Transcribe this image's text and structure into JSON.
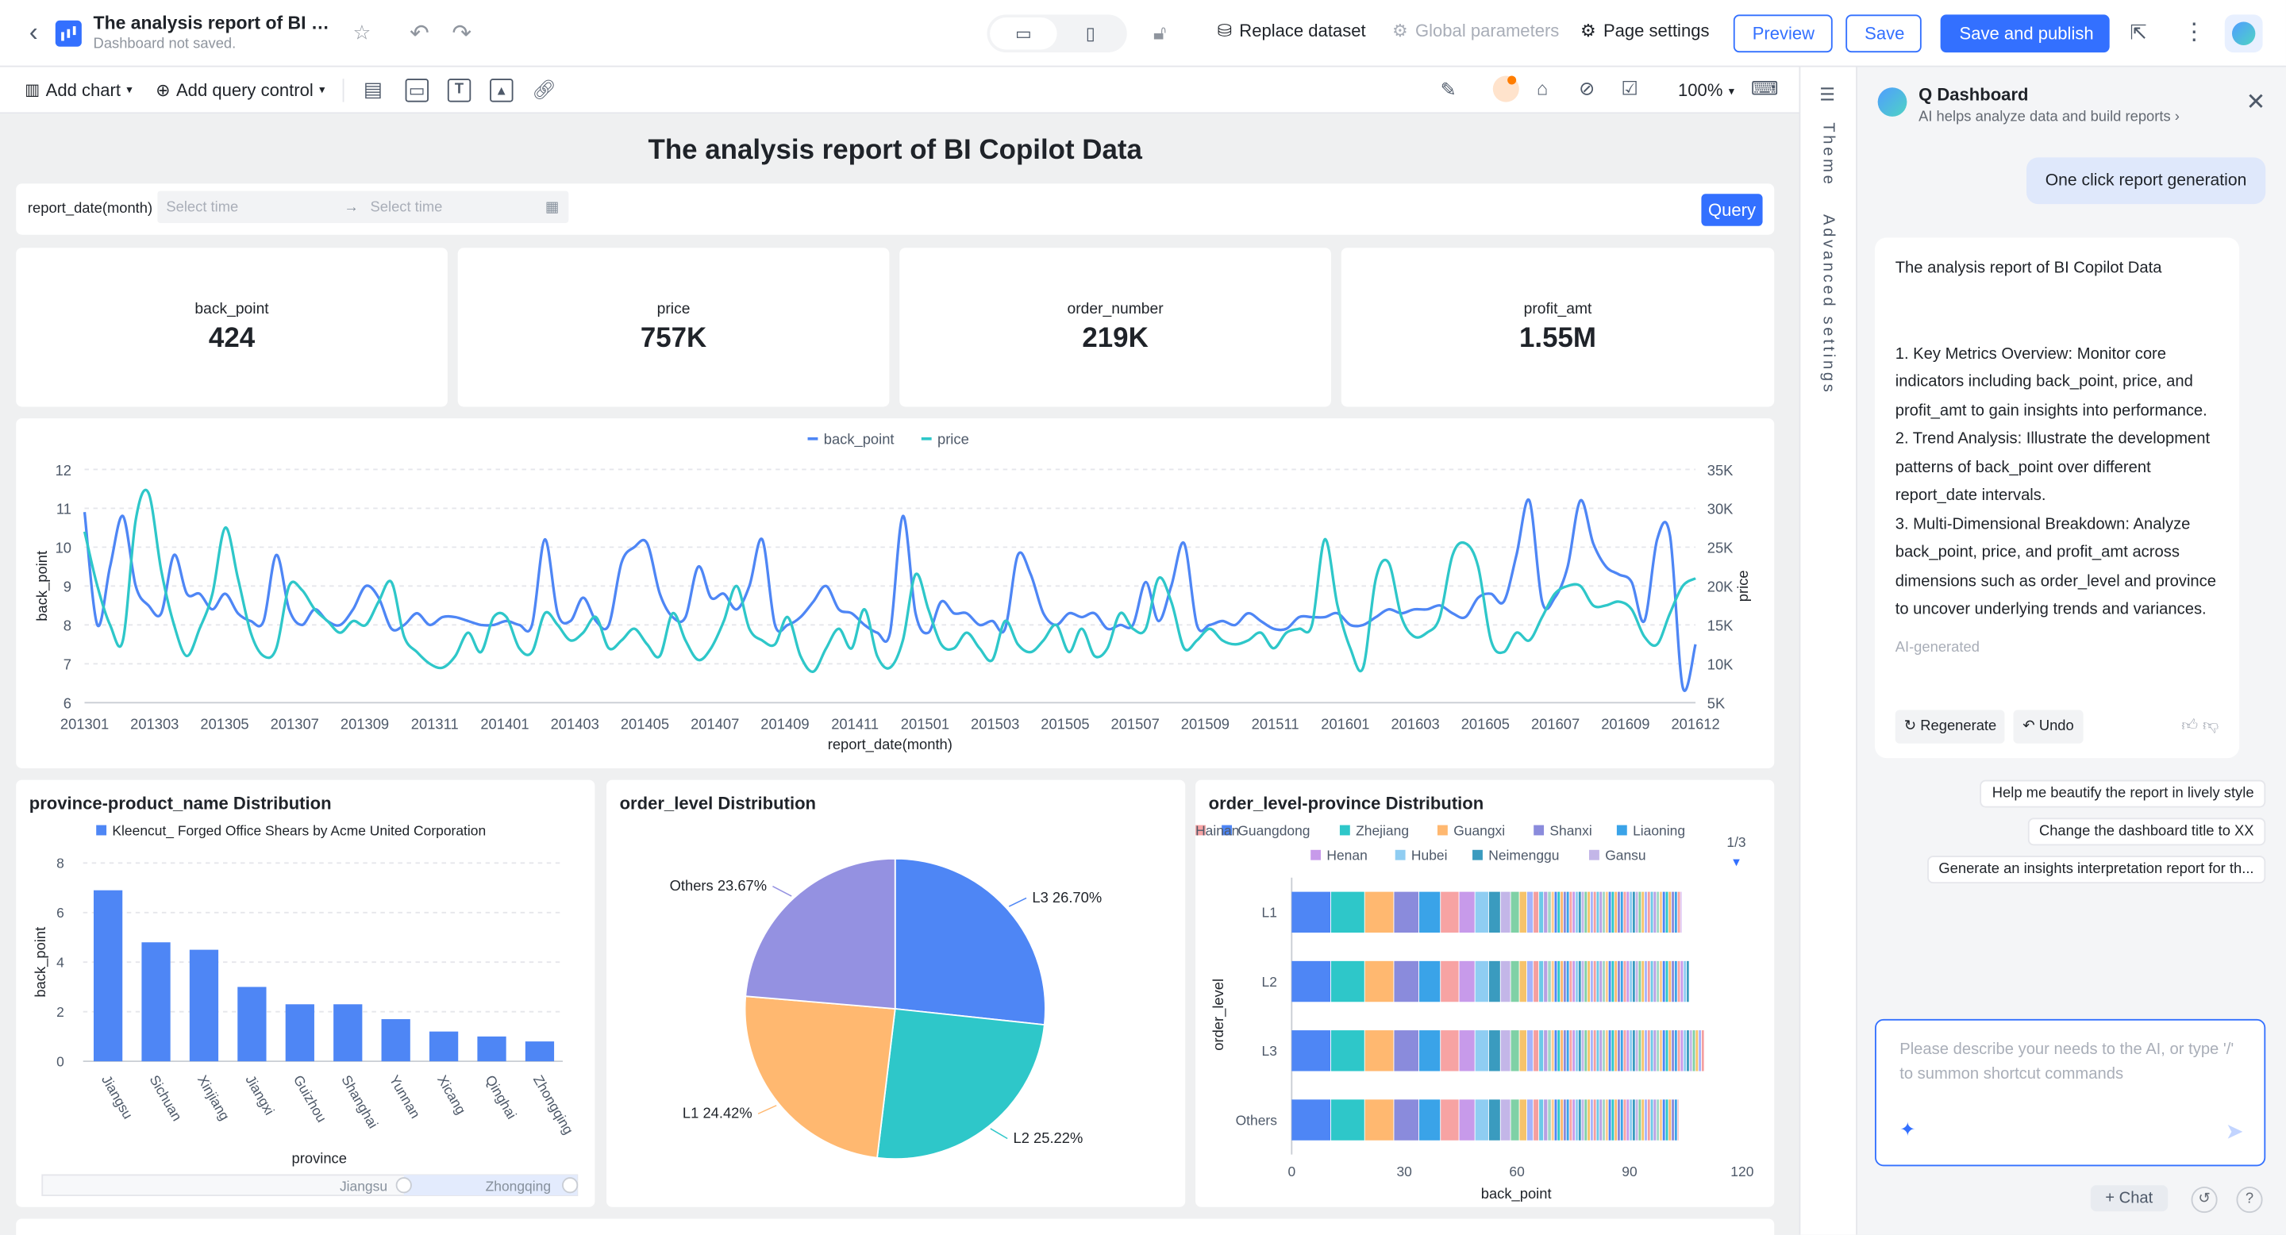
{
  "header": {
    "title": "The analysis report of BI Copil...",
    "subtitle": "Dashboard not saved.",
    "replace_dataset": "Replace dataset",
    "global_parameters": "Global parameters",
    "page_settings": "Page settings",
    "preview": "Preview",
    "save": "Save",
    "save_publish": "Save and publish"
  },
  "toolbar": {
    "add_chart": "Add chart",
    "add_query_control": "Add query control",
    "zoom": "100%"
  },
  "report": {
    "title": "The analysis report of BI Copilot Data",
    "filter": {
      "label": "report_date(month)",
      "start_placeholder": "Select time",
      "end_placeholder": "Select time",
      "query_button": "Query"
    },
    "kpis": [
      {
        "name": "back_point",
        "value": "424"
      },
      {
        "name": "price",
        "value": "757K"
      },
      {
        "name": "order_number",
        "value": "219K"
      },
      {
        "name": "profit_amt",
        "value": "1.55M"
      }
    ]
  },
  "chart_data": [
    {
      "type": "line",
      "title": "",
      "xlabel": "report_date(month)",
      "ylabel": "back_point",
      "y2label": "price",
      "ylim": [
        6,
        12
      ],
      "y2lim": [
        5000,
        35000
      ],
      "y_ticks": [
        "6",
        "7",
        "8",
        "9",
        "10",
        "11",
        "12"
      ],
      "y2_ticks": [
        "5K",
        "10K",
        "15K",
        "20K",
        "25K",
        "30K",
        "35K"
      ],
      "x_tick_labels": [
        "201301",
        "201303",
        "201305",
        "201307",
        "201309",
        "201311",
        "201401",
        "201403",
        "201405",
        "201407",
        "201409",
        "201411",
        "201501",
        "201503",
        "201505",
        "201507",
        "201509",
        "201511",
        "201601",
        "201603",
        "201605",
        "201607",
        "201609",
        "201612"
      ],
      "legend": [
        "back_point",
        "price"
      ],
      "legend_position": "top-center",
      "colors": [
        "#4e86f5",
        "#2ec7c9"
      ],
      "series": [
        {
          "name": "back_point",
          "axis": "left",
          "values": [
            10.9,
            8.0,
            9.5,
            10.8,
            9.0,
            8.5,
            8.3,
            9.8,
            8.8,
            8.8,
            8.4,
            8.8,
            8.3,
            8.1,
            8.1,
            9.8,
            8.4,
            8.0,
            8.4,
            8.1,
            8.0,
            8.4,
            9.0,
            8.7,
            7.9,
            8.0,
            8.3,
            8.0,
            8.2,
            8.2,
            8.1,
            8.0,
            8.0,
            8.1,
            8.0,
            8.0,
            10.2,
            8.3,
            8.1,
            8.7,
            8.1,
            8.0,
            9.6,
            10.0,
            10.1,
            8.8,
            8.2,
            8.2,
            9.5,
            8.7,
            8.8,
            8.4,
            9.0,
            10.2,
            8.0,
            8.0,
            8.2,
            8.6,
            9.0,
            8.4,
            8.3,
            8.0,
            7.8,
            7.8,
            10.8,
            8.3,
            7.8,
            8.6,
            8.3,
            8.3,
            8.0,
            8.1,
            7.9,
            9.8,
            9.3,
            8.3,
            8.0,
            8.3,
            8.2,
            8.3,
            7.9,
            8.0,
            8.0,
            9.1,
            8.1,
            9.0,
            10.1,
            8.0,
            8.0,
            8.1,
            8.0,
            8.3,
            8.1,
            7.9,
            7.9,
            8.2,
            8.2,
            8.2,
            8.3,
            8.0,
            8.0,
            8.2,
            8.4,
            8.3,
            8.4,
            8.4,
            8.5,
            8.3,
            8.2,
            8.7,
            8.8,
            8.6,
            9.8,
            11.2,
            8.6,
            8.7,
            9.5,
            11.2,
            10.1,
            9.5,
            9.3,
            9.1,
            8.1,
            10.2,
            10.3,
            6.4,
            7.5
          ]
        },
        {
          "name": "price",
          "axis": "right",
          "values": [
            27000,
            20000,
            15000,
            13000,
            28500,
            32000,
            22000,
            15000,
            11000,
            14500,
            19000,
            27500,
            21000,
            14000,
            11000,
            12000,
            20000,
            19500,
            17000,
            15500,
            14000,
            15500,
            15000,
            18000,
            20500,
            13500,
            11500,
            10000,
            9500,
            11000,
            14000,
            11500,
            16000,
            16000,
            12000,
            11500,
            16500,
            15000,
            13000,
            14000,
            16000,
            12000,
            13000,
            14500,
            12500,
            11000,
            16500,
            13000,
            10500,
            12000,
            15500,
            20000,
            14500,
            13000,
            12500,
            16000,
            11000,
            9000,
            12000,
            14500,
            12000,
            17000,
            11000,
            9500,
            13000,
            21500,
            17000,
            12500,
            12000,
            14000,
            12000,
            10500,
            15500,
            12500,
            11500,
            13000,
            15000,
            11500,
            14500,
            11000,
            12000,
            16500,
            14500,
            14500,
            21000,
            18000,
            12000,
            13000,
            14500,
            13000,
            12500,
            13000,
            14000,
            12000,
            14000,
            14500,
            15000,
            26000,
            17500,
            12000,
            9500,
            21000,
            23000,
            16000,
            13500,
            14000,
            16000,
            24000,
            25500,
            22500,
            13000,
            11500,
            14000,
            13000,
            16000,
            19000,
            20000,
            20000,
            17500,
            17500,
            18000,
            17000,
            13500,
            12500,
            16500,
            20000,
            21000
          ]
        }
      ]
    },
    {
      "type": "bar",
      "title": "province-product_name Distribution",
      "legend": [
        "Kleencut_ Forged Office Shears by Acme United Corporation"
      ],
      "xlabel": "province",
      "ylabel": "back_point",
      "ylim": [
        0,
        8
      ],
      "y_ticks": [
        "0",
        "2",
        "4",
        "6",
        "8"
      ],
      "categories": [
        "Jiangsu",
        "Sichuan",
        "Xinjiang",
        "Jiangxi",
        "Guizhou",
        "Shanghai",
        "Yunnan",
        "Xicang",
        "Qinghai",
        "Zhongqing"
      ],
      "series": [
        {
          "name": "Kleencut_ Forged Office Shears by Acme United Corporation",
          "values": [
            6.9,
            4.8,
            4.5,
            3.0,
            2.3,
            2.3,
            1.7,
            1.2,
            1.0,
            0.8
          ]
        }
      ],
      "color": "#4e86f5",
      "slider": {
        "start": "Jiangsu",
        "end": "Zhongqing"
      }
    },
    {
      "type": "pie",
      "title": "order_level Distribution",
      "slices": [
        {
          "label": "L3 26.70%",
          "value": 26.7,
          "color": "#4e86f5"
        },
        {
          "label": "L2 25.22%",
          "value": 25.22,
          "color": "#2ec7c9"
        },
        {
          "label": "L1 24.42%",
          "value": 24.42,
          "color": "#ffb870"
        },
        {
          "label": "Others 23.67%",
          "value": 23.67,
          "color": "#9491e1"
        }
      ]
    },
    {
      "type": "bar",
      "orientation": "horizontal-stacked",
      "title": "order_level-province Distribution",
      "legend": [
        "Guangdong",
        "Zhejiang",
        "Guangxi",
        "Shanxi",
        "Liaoning",
        "Hainan",
        "Henan",
        "Hubei",
        "Neimenggu",
        "Gansu"
      ],
      "legend_colors": [
        "#4e86f5",
        "#2ec7c9",
        "#ffb870",
        "#8a8bdc",
        "#3aa3e8",
        "#f7a3a3",
        "#c79aea",
        "#8fcdf2",
        "#3a9bbf",
        "#c3b6e8"
      ],
      "legend_page": "1/3",
      "categories": [
        "L1",
        "L2",
        "L3",
        "Others"
      ],
      "totals": [
        104,
        106,
        110,
        103
      ],
      "xlabel": "back_point",
      "ylabel": "order_level",
      "xlim": [
        0,
        120
      ],
      "x_ticks": [
        "0",
        "30",
        "60",
        "90",
        "120"
      ]
    }
  ],
  "ai": {
    "name": "Q Dashboard",
    "subtitle": "AI helps analyze data and build reports",
    "user_message": "One click report generation",
    "reply": {
      "title": "The analysis report of BI Copilot Data",
      "p1": "1. Key Metrics Overview: Monitor core indicators including back_point, price, and profit_amt to gain insights into performance.",
      "p2": "2. Trend Analysis: Illustrate the development patterns of back_point over different report_date intervals.",
      "p3": "3. Multi-Dimensional Breakdown: Analyze back_point, price, and profit_amt across dimensions such as order_level and province to uncover underlying trends and variances.",
      "tag": "AI-generated",
      "regenerate": "Regenerate",
      "undo": "Undo"
    },
    "suggestions": [
      "Help me beautify the report in lively style",
      "Change the dashboard title to XX",
      "Generate an insights interpretation report for th..."
    ],
    "input_placeholder": "Please describe your needs to the AI, or type '/' to summon shortcut commands",
    "chat_button": "+ Chat"
  },
  "side_tabs": {
    "theme": "Theme",
    "advanced": "Advanced settings"
  }
}
